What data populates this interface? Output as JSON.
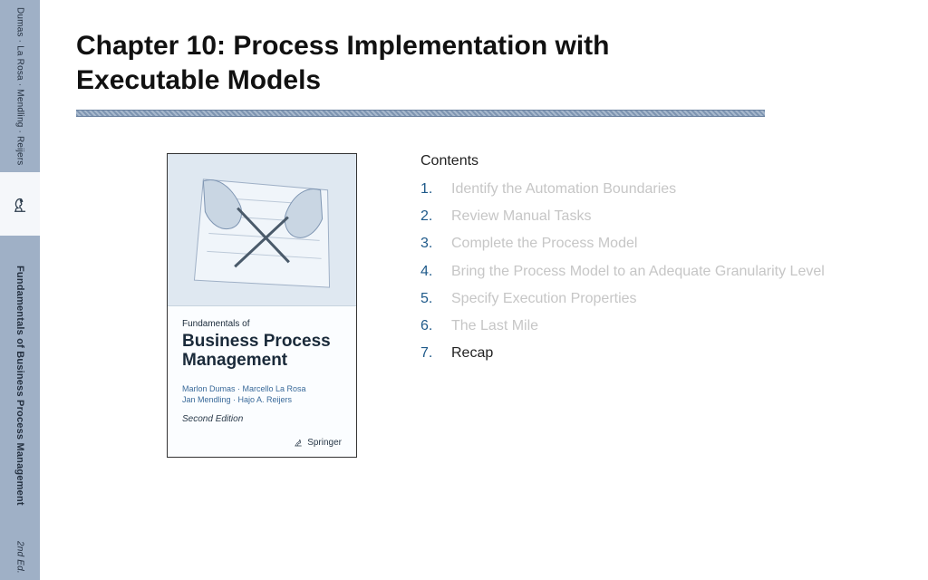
{
  "colors": {
    "spine_bg": "#9fb0c6",
    "spine_text": "#243040",
    "rule_dark": "#7e95b2",
    "rule_light": "#a7b8cc",
    "toc_number": "#1f5a8a",
    "toc_dim": "#c6c6c6",
    "toc_active": "#222222",
    "cover_art_bg": "#dfe8f1",
    "cover_author": "#3a6a9a",
    "background": "#ffffff"
  },
  "spine": {
    "authors": "Dumas · La Rosa · Mendling · Reijers",
    "title": "Fundamentals of Business Process Management",
    "edition": "2nd Ed.",
    "knight_icon": "chess-knight-icon"
  },
  "chapter": {
    "title": "Chapter 10: Process Implementation with Executable Models"
  },
  "cover": {
    "supertitle": "Fundamentals of",
    "main_title": "Business Process Management",
    "authors_line1": "Marlon Dumas · Marcello La Rosa",
    "authors_line2": "Jan Mendling · Hajo A. Reijers",
    "edition": "Second Edition",
    "publisher": "Springer"
  },
  "contents": {
    "heading": "Contents",
    "items": [
      {
        "num": "1.",
        "label": "Identify the Automation Boundaries",
        "active": false
      },
      {
        "num": "2.",
        "label": "Review Manual Tasks",
        "active": false
      },
      {
        "num": "3.",
        "label": "Complete the Process Model",
        "active": false
      },
      {
        "num": "4.",
        "label": "Bring the Process Model to an Adequate Granularity Level",
        "active": false
      },
      {
        "num": "5.",
        "label": "Specify Execution Properties",
        "active": false
      },
      {
        "num": "6.",
        "label": "The Last Mile",
        "active": false
      },
      {
        "num": "7.",
        "label": "Recap",
        "active": true
      }
    ]
  },
  "typography": {
    "chapter_title_fontsize": 30,
    "chapter_title_weight": 700,
    "contents_fontsize": 16,
    "cover_main_fontsize": 19
  }
}
